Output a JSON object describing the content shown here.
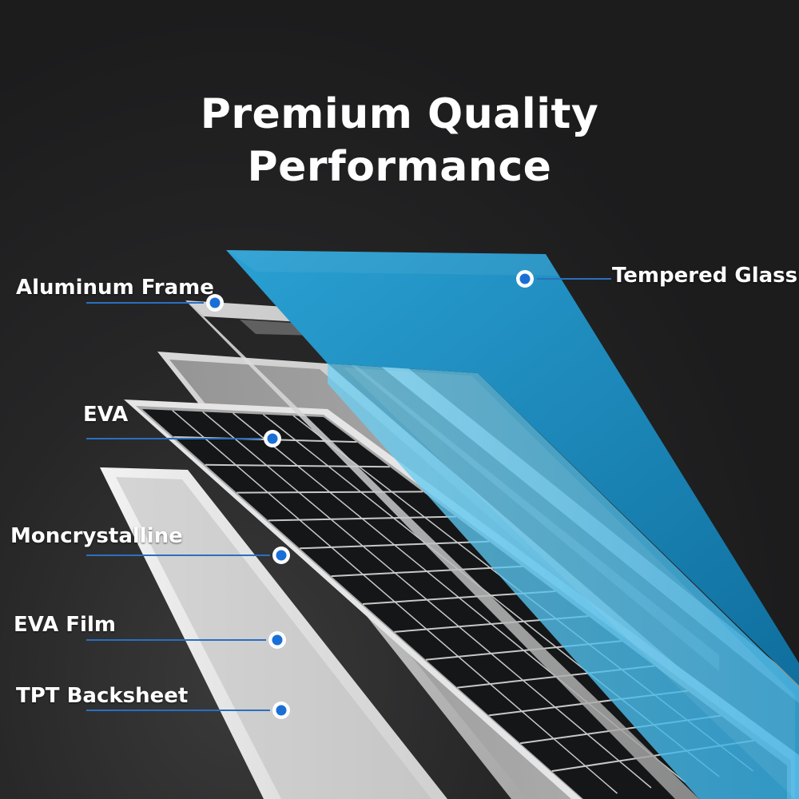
{
  "title": {
    "line1": "Premium Quality",
    "line2": "Performance"
  },
  "layers": [
    {
      "key": "tempered-glass",
      "label": "Tempered Glass"
    },
    {
      "key": "aluminum-frame",
      "label": "Aluminum Frame"
    },
    {
      "key": "eva",
      "label": "EVA"
    },
    {
      "key": "monocrystalline",
      "label": "Moncrystalline"
    },
    {
      "key": "eva-film",
      "label": "EVA Film"
    },
    {
      "key": "tpt-backsheet",
      "label": "TPT Backsheet"
    }
  ],
  "colors": {
    "background": "#1c1c1d",
    "glass": "#1b86b8",
    "glass_light": "#4fc0ee",
    "callout_dot": "#1a6fd6",
    "callout_line": "#2a6fc0",
    "cell_dark": "#121416",
    "text": "#ffffff"
  }
}
